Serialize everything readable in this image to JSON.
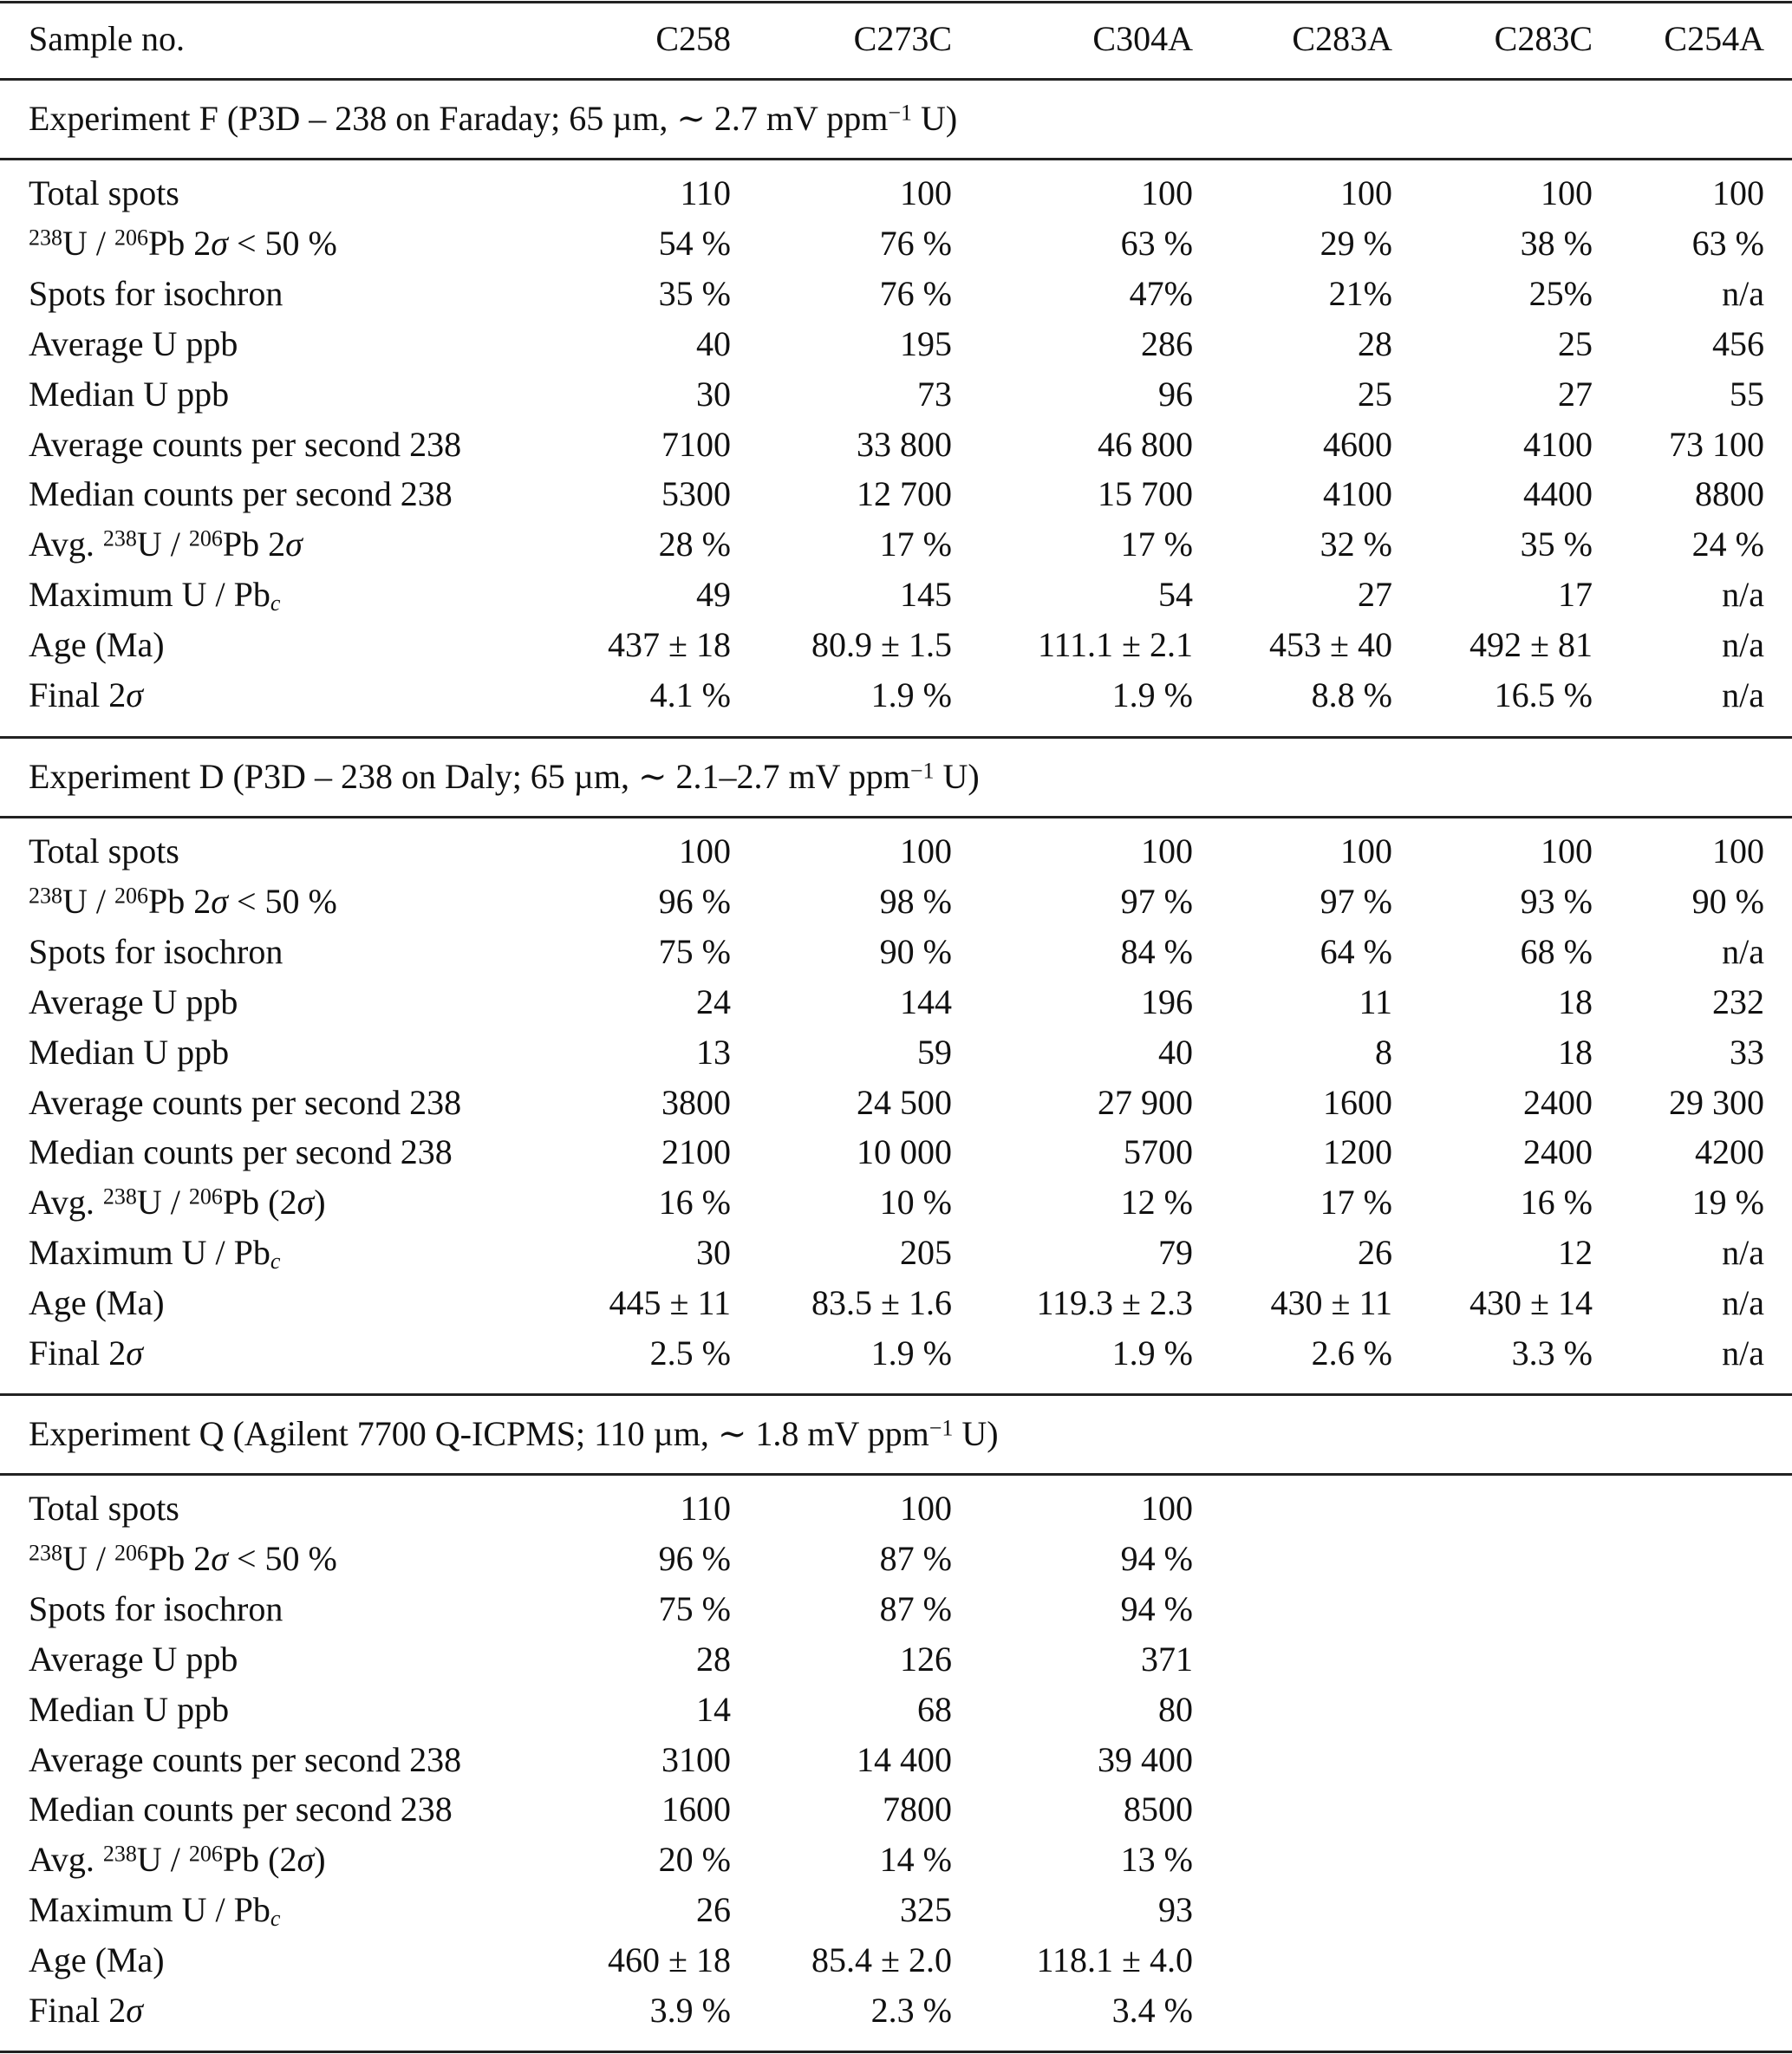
{
  "header": {
    "label": "Sample no.",
    "samples": [
      "C258",
      "C273C",
      "C304A",
      "C283A",
      "C283C",
      "C254A"
    ]
  },
  "sections": [
    {
      "title": "Experiment F (P3D – 238 on Faraday; 65 µm, ∼ 2.7 mV ppm−1 U)",
      "rows": [
        {
          "label": "Total spots",
          "values": [
            "110",
            "100",
            "100",
            "100",
            "100",
            "100"
          ]
        },
        {
          "label": "238U / 206Pb 2σ < 50 %",
          "values": [
            "54 %",
            "76 %",
            "63 %",
            "29 %",
            "38 %",
            "63 %"
          ]
        },
        {
          "label": "Spots for isochron",
          "values": [
            "35 %",
            "76 %",
            "47%",
            "21%",
            "25%",
            "n/a"
          ]
        },
        {
          "label": "Average U ppb",
          "values": [
            "40",
            "195",
            "286",
            "28",
            "25",
            "456"
          ]
        },
        {
          "label": "Median U ppb",
          "values": [
            "30",
            "73",
            "96",
            "25",
            "27",
            "55"
          ]
        },
        {
          "label": "Average counts per second 238",
          "values": [
            "7100",
            "33 800",
            "46 800",
            "4600",
            "4100",
            "73 100"
          ]
        },
        {
          "label": "Median counts per second 238",
          "values": [
            "5300",
            "12 700",
            "15 700",
            "4100",
            "4400",
            "8800"
          ]
        },
        {
          "label": "Avg. 238U / 206Pb 2σ",
          "values": [
            "28 %",
            "17 %",
            "17 %",
            "32 %",
            "35 %",
            "24 %"
          ]
        },
        {
          "label": "Maximum U / Pbc",
          "values": [
            "49",
            "145",
            "54",
            "27",
            "17",
            "n/a"
          ]
        },
        {
          "label": "Age (Ma)",
          "values": [
            "437 ± 18",
            "80.9 ± 1.5",
            "111.1 ± 2.1",
            "453 ± 40",
            "492 ± 81",
            "n/a"
          ]
        },
        {
          "label": "Final 2σ",
          "values": [
            "4.1 %",
            "1.9 %",
            "1.9 %",
            "8.8 %",
            "16.5 %",
            "n/a"
          ]
        }
      ]
    },
    {
      "title": "Experiment D (P3D – 238 on Daly; 65 µm, ∼ 2.1–2.7 mV ppm−1 U)",
      "rows": [
        {
          "label": "Total spots",
          "values": [
            "100",
            "100",
            "100",
            "100",
            "100",
            "100"
          ]
        },
        {
          "label": "238U / 206Pb 2σ < 50 %",
          "values": [
            "96 %",
            "98 %",
            "97 %",
            "97 %",
            "93 %",
            "90 %"
          ]
        },
        {
          "label": "Spots for isochron",
          "values": [
            "75 %",
            "90 %",
            "84 %",
            "64 %",
            "68 %",
            "n/a"
          ]
        },
        {
          "label": "Average U ppb",
          "values": [
            "24",
            "144",
            "196",
            "11",
            "18",
            "232"
          ]
        },
        {
          "label": "Median U ppb",
          "values": [
            "13",
            "59",
            "40",
            "8",
            "18",
            "33"
          ]
        },
        {
          "label": "Average counts per second 238",
          "values": [
            "3800",
            "24 500",
            "27 900",
            "1600",
            "2400",
            "29 300"
          ]
        },
        {
          "label": "Median counts per second 238",
          "values": [
            "2100",
            "10 000",
            "5700",
            "1200",
            "2400",
            "4200"
          ]
        },
        {
          "label": "Avg. 238U / 206Pb (2σ)",
          "values": [
            "16 %",
            "10 %",
            "12 %",
            "17 %",
            "16 %",
            "19 %"
          ]
        },
        {
          "label": "Maximum U / Pbc",
          "values": [
            "30",
            "205",
            "79",
            "26",
            "12",
            "n/a"
          ]
        },
        {
          "label": "Age (Ma)",
          "values": [
            "445 ± 11",
            "83.5 ± 1.6",
            "119.3 ± 2.3",
            "430 ± 11",
            "430 ± 14",
            "n/a"
          ]
        },
        {
          "label": "Final 2σ",
          "values": [
            "2.5 %",
            "1.9 %",
            "1.9 %",
            "2.6 %",
            "3.3 %",
            "n/a"
          ]
        }
      ]
    },
    {
      "title": "Experiment Q (Agilent 7700 Q-ICPMS; 110 µm, ∼ 1.8 mV ppm−1 U)",
      "rows": [
        {
          "label": "Total spots",
          "values": [
            "110",
            "100",
            "100"
          ]
        },
        {
          "label": "238U / 206Pb 2σ < 50 %",
          "values": [
            "96 %",
            "87 %",
            "94 %"
          ]
        },
        {
          "label": "Spots for isochron",
          "values": [
            "75 %",
            "87 %",
            "94 %"
          ]
        },
        {
          "label": "Average U ppb",
          "values": [
            "28",
            "126",
            "371"
          ]
        },
        {
          "label": "Median U ppb",
          "values": [
            "14",
            "68",
            "80"
          ]
        },
        {
          "label": "Average counts per second 238",
          "values": [
            "3100",
            "14 400",
            "39 400"
          ]
        },
        {
          "label": "Median counts per second 238",
          "values": [
            "1600",
            "7800",
            "8500"
          ]
        },
        {
          "label": "Avg. 238U / 206Pb (2σ)",
          "values": [
            "20 %",
            "14 %",
            "13 %"
          ]
        },
        {
          "label": "Maximum U / Pbc",
          "values": [
            "26",
            "325",
            "93"
          ]
        },
        {
          "label": "Age (Ma)",
          "values": [
            "460 ± 18",
            "85.4 ± 2.0",
            "118.1 ± 4.0"
          ]
        },
        {
          "label": "Final 2σ",
          "values": [
            "3.9 %",
            "2.3 %",
            "3.4 %"
          ]
        }
      ]
    }
  ]
}
